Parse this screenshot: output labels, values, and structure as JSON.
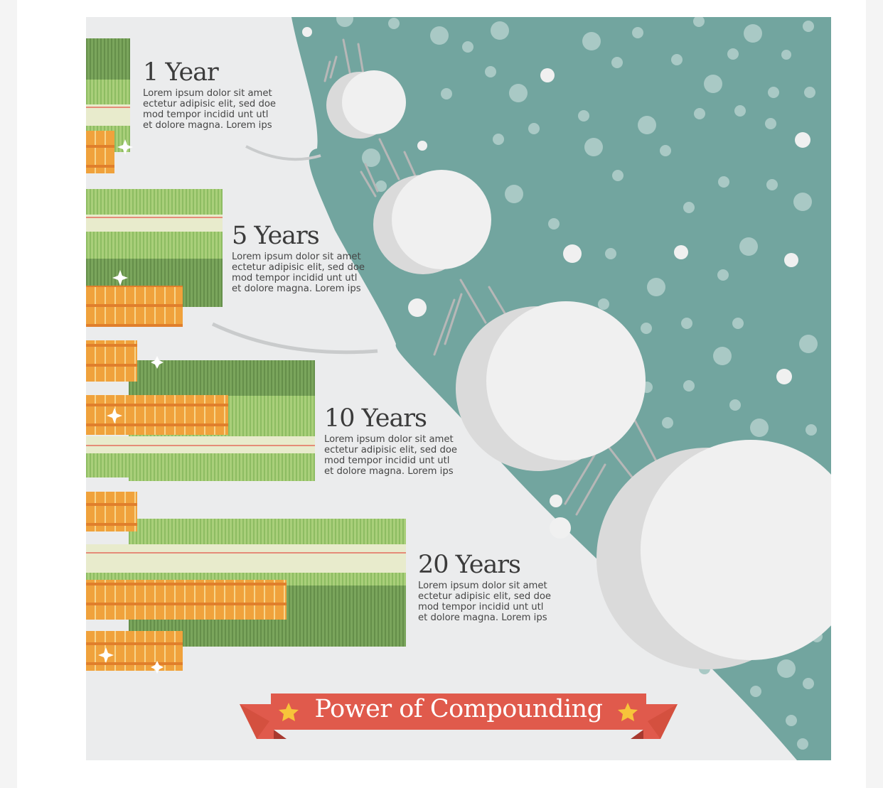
{
  "infographic": {
    "banner_title": "Power of Compounding",
    "stages": [
      {
        "title": "1 Year",
        "body": "Lorem ipsum dolor sit amet\nectetur adipisic elit, sed doe\nmod tempor  incidid unt utl\net dolore  magna. Lorem ips"
      },
      {
        "title": "5 Years",
        "body": "Lorem ipsum dolor sit amet\nectetur adipisic elit, sed doe\nmod tempor  incidid unt utl\net dolore  magna. Lorem ips"
      },
      {
        "title": "10 Years",
        "body": "Lorem ipsum dolor sit amet\nectetur adipisic elit, sed doe\nmod tempor  incidid unt utl\net dolore  magna. Lorem ips"
      },
      {
        "title": "20 Years",
        "body": "Lorem ipsum dolor sit amet\nectetur adipisic elit, sed doe\nmod tempor  incidid unt utl\net dolore  magna. Lorem ips"
      }
    ],
    "icons": [
      "snowball-icon",
      "money-stack-icon",
      "coin-stack-icon",
      "star-icon",
      "sparkle-icon"
    ],
    "colors": {
      "background": "#ebeced",
      "slope": "#72a59f",
      "snowball": "#f0f0f0",
      "snowball_shade": "#dadada",
      "ribbon": "#e05a4c",
      "ribbon_dark": "#b8443a",
      "money_light": "#a9cf7a",
      "money_dark": "#6e9a53",
      "coin": "#f0a23c",
      "coin_dark": "#d9822a",
      "star": "#f7c43a"
    }
  }
}
